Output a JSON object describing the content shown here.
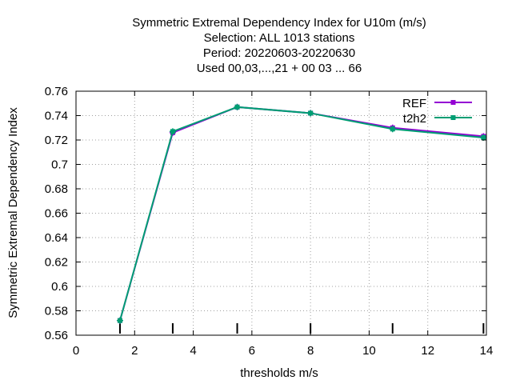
{
  "chart_data": {
    "type": "line",
    "title_lines": [
      "Symmetric Extremal Dependency Index  for U10m (m/s)",
      "Selection: ALL   1013 stations",
      "Period: 20220603-20220630",
      "Used  00,03,...,21  + 00 03 ... 66"
    ],
    "xlabel": "thresholds m/s",
    "ylabel": "Symmetric Extremal Dependency Index",
    "xlim": [
      0,
      14
    ],
    "ylim": [
      0.56,
      0.76
    ],
    "x_ticks": [
      0,
      2,
      4,
      6,
      8,
      10,
      12,
      14
    ],
    "x_tick_labels": [
      "0",
      "2",
      "4",
      "6",
      "8",
      "10",
      "12",
      "14"
    ],
    "y_ticks": [
      0.56,
      0.58,
      0.6,
      0.62,
      0.64,
      0.66,
      0.68,
      0.7,
      0.72,
      0.74,
      0.76
    ],
    "y_tick_labels": [
      "0.56",
      "0.58",
      "0.6",
      "0.62",
      "0.64",
      "0.66",
      "0.68",
      "0.7",
      "0.72",
      "0.74",
      "0.76"
    ],
    "grid": true,
    "legend_position": "top-right",
    "threshold_markers": [
      1.5,
      3.3,
      5.5,
      8.0,
      10.8,
      13.9
    ],
    "series": [
      {
        "name": "REF",
        "color": "#9400d3",
        "x": [
          1.5,
          3.3,
          5.5,
          8.0,
          10.8,
          13.9
        ],
        "y": [
          0.572,
          0.726,
          0.747,
          0.742,
          0.73,
          0.723
        ]
      },
      {
        "name": "t2h2",
        "color": "#009e73",
        "x": [
          1.5,
          3.3,
          5.5,
          8.0,
          10.8,
          13.9
        ],
        "y": [
          0.572,
          0.727,
          0.747,
          0.742,
          0.729,
          0.722
        ]
      }
    ]
  }
}
